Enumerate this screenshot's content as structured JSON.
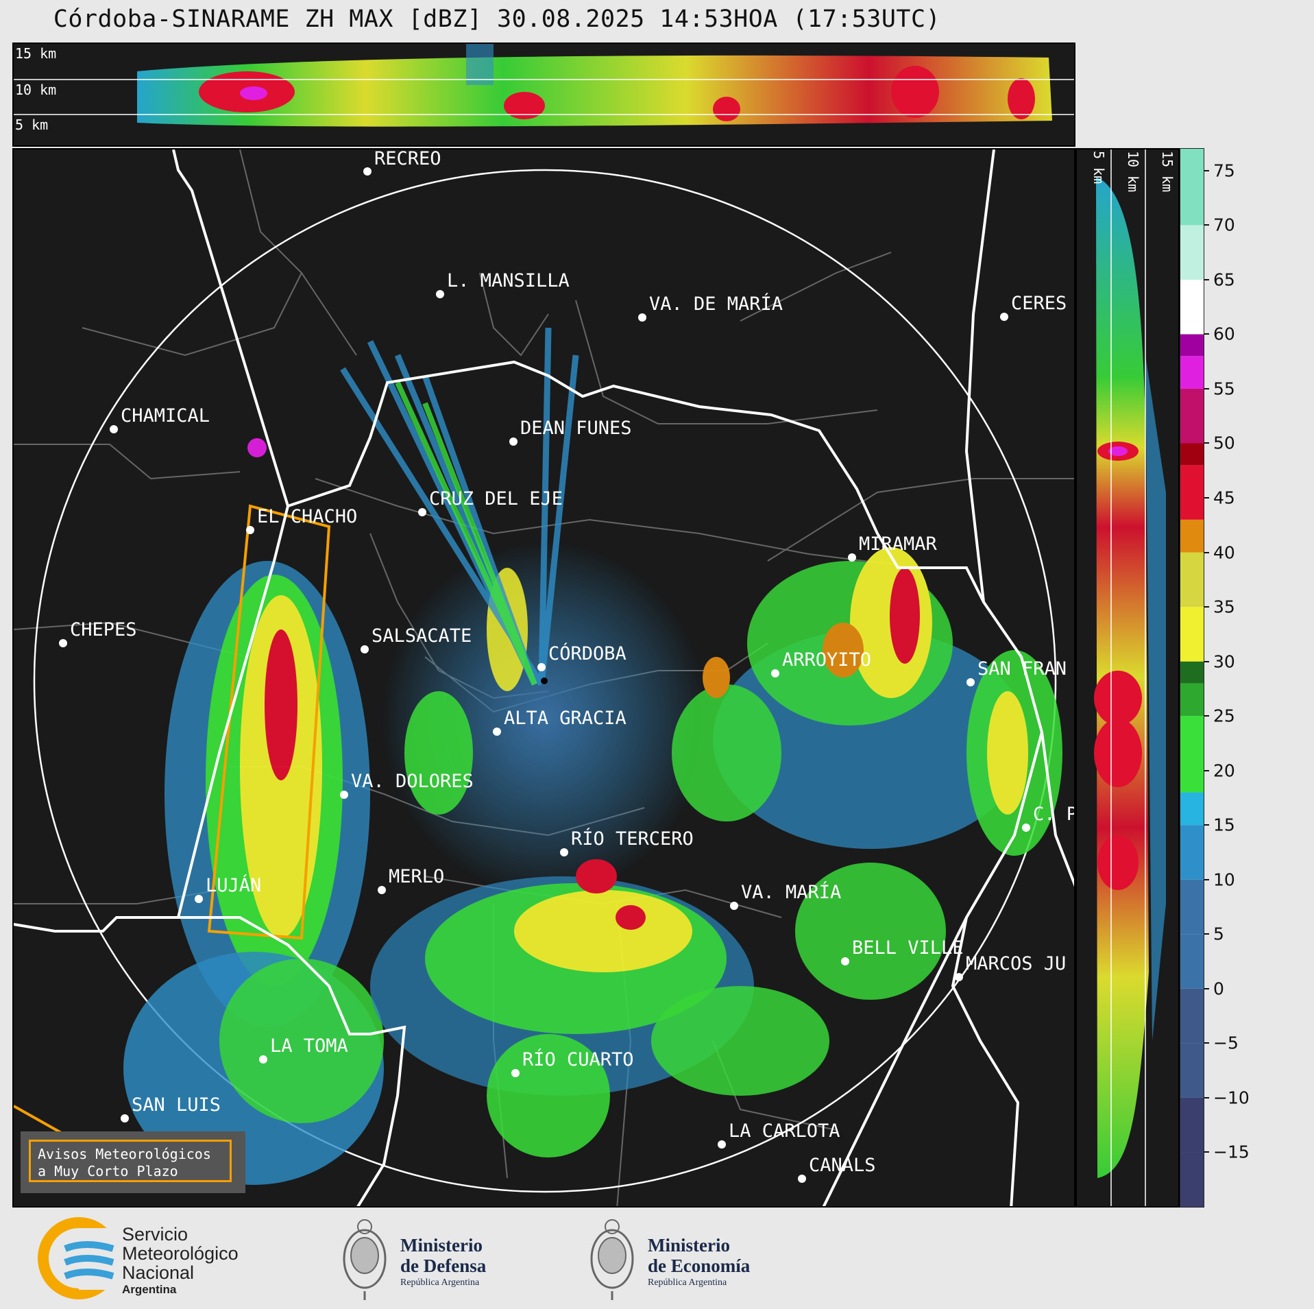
{
  "header": {
    "title": "Córdoba-SINARAME ZH MAX [dBZ] 30.08.2025 14:53HOA (17:53UTC)"
  },
  "top_panel": {
    "altitude_labels": [
      "15 km",
      "10 km",
      "5 km"
    ]
  },
  "side_panel": {
    "altitude_labels": [
      "5 km",
      "10 km",
      "15 km"
    ]
  },
  "colorbar": {
    "unit": "dBZ",
    "ticks": [
      "75",
      "70",
      "65",
      "60",
      "55",
      "50",
      "45",
      "40",
      "35",
      "30",
      "25",
      "20",
      "15",
      "10",
      "5",
      "0",
      "−5",
      "−10",
      "−15"
    ],
    "tick_values": [
      75,
      70,
      65,
      60,
      55,
      50,
      45,
      40,
      35,
      30,
      25,
      20,
      15,
      10,
      5,
      0,
      -5,
      -10,
      -15
    ],
    "range": [
      -20,
      77
    ],
    "colors": {
      "v-20": "#3a3f6e",
      "v-10": "#3f5a8a",
      "v0": "#3b73a8",
      "v10": "#2f8fc8",
      "v15": "#27b4e0",
      "v18": "#3adf3a",
      "v25": "#2fa82f",
      "v28": "#1f6e1f",
      "v30": "#f0f030",
      "v35": "#d6d640",
      "v40": "#e08a10",
      "v43": "#e01030",
      "v48": "#a00010",
      "v50": "#c0106a",
      "v55": "#e020e0",
      "v58": "#a000a0",
      "v60": "#ffffff",
      "v65": "#c0f0e0",
      "v75": "#80e0c0"
    }
  },
  "map": {
    "cities": [
      {
        "name": "RECREO"
      },
      {
        "name": "L. MANSILLA"
      },
      {
        "name": "VA. DE MARÍA"
      },
      {
        "name": "CERES"
      },
      {
        "name": "CHAMICAL"
      },
      {
        "name": "DEAN FUNES"
      },
      {
        "name": "CRUZ DEL EJE"
      },
      {
        "name": "EL CHACHO"
      },
      {
        "name": "MIRAMAR"
      },
      {
        "name": "CHEPES"
      },
      {
        "name": "SALSACATE"
      },
      {
        "name": "CÓRDOBA"
      },
      {
        "name": "ARROYITO"
      },
      {
        "name": "SAN FRAN"
      },
      {
        "name": "ALTA GRACIA"
      },
      {
        "name": "VA. DOLORES"
      },
      {
        "name": "RÍO TERCERO"
      },
      {
        "name": "C. P"
      },
      {
        "name": "LUJÁN"
      },
      {
        "name": "MERLO"
      },
      {
        "name": "VA. MARÍA"
      },
      {
        "name": "BELL VILLE"
      },
      {
        "name": "MARCOS JU"
      },
      {
        "name": "LA TOMA"
      },
      {
        "name": "RÍO CUARTO"
      },
      {
        "name": "SAN LUIS"
      },
      {
        "name": "LA CARLOTA"
      },
      {
        "name": "CANALS"
      }
    ],
    "alert_box": {
      "line1": "Avisos Meteorológicos",
      "line2": "a Muy Corto Plazo"
    }
  },
  "logos": {
    "smn": {
      "line1": "Servicio",
      "line2": "Meteorológico",
      "line3": "Nacional",
      "line4": "Argentina"
    },
    "defensa": {
      "line1": "Ministerio",
      "line2": "de Defensa",
      "line3": "República Argentina"
    },
    "economia": {
      "line1": "Ministerio",
      "line2": "de Economía",
      "line3": "República Argentina"
    }
  }
}
